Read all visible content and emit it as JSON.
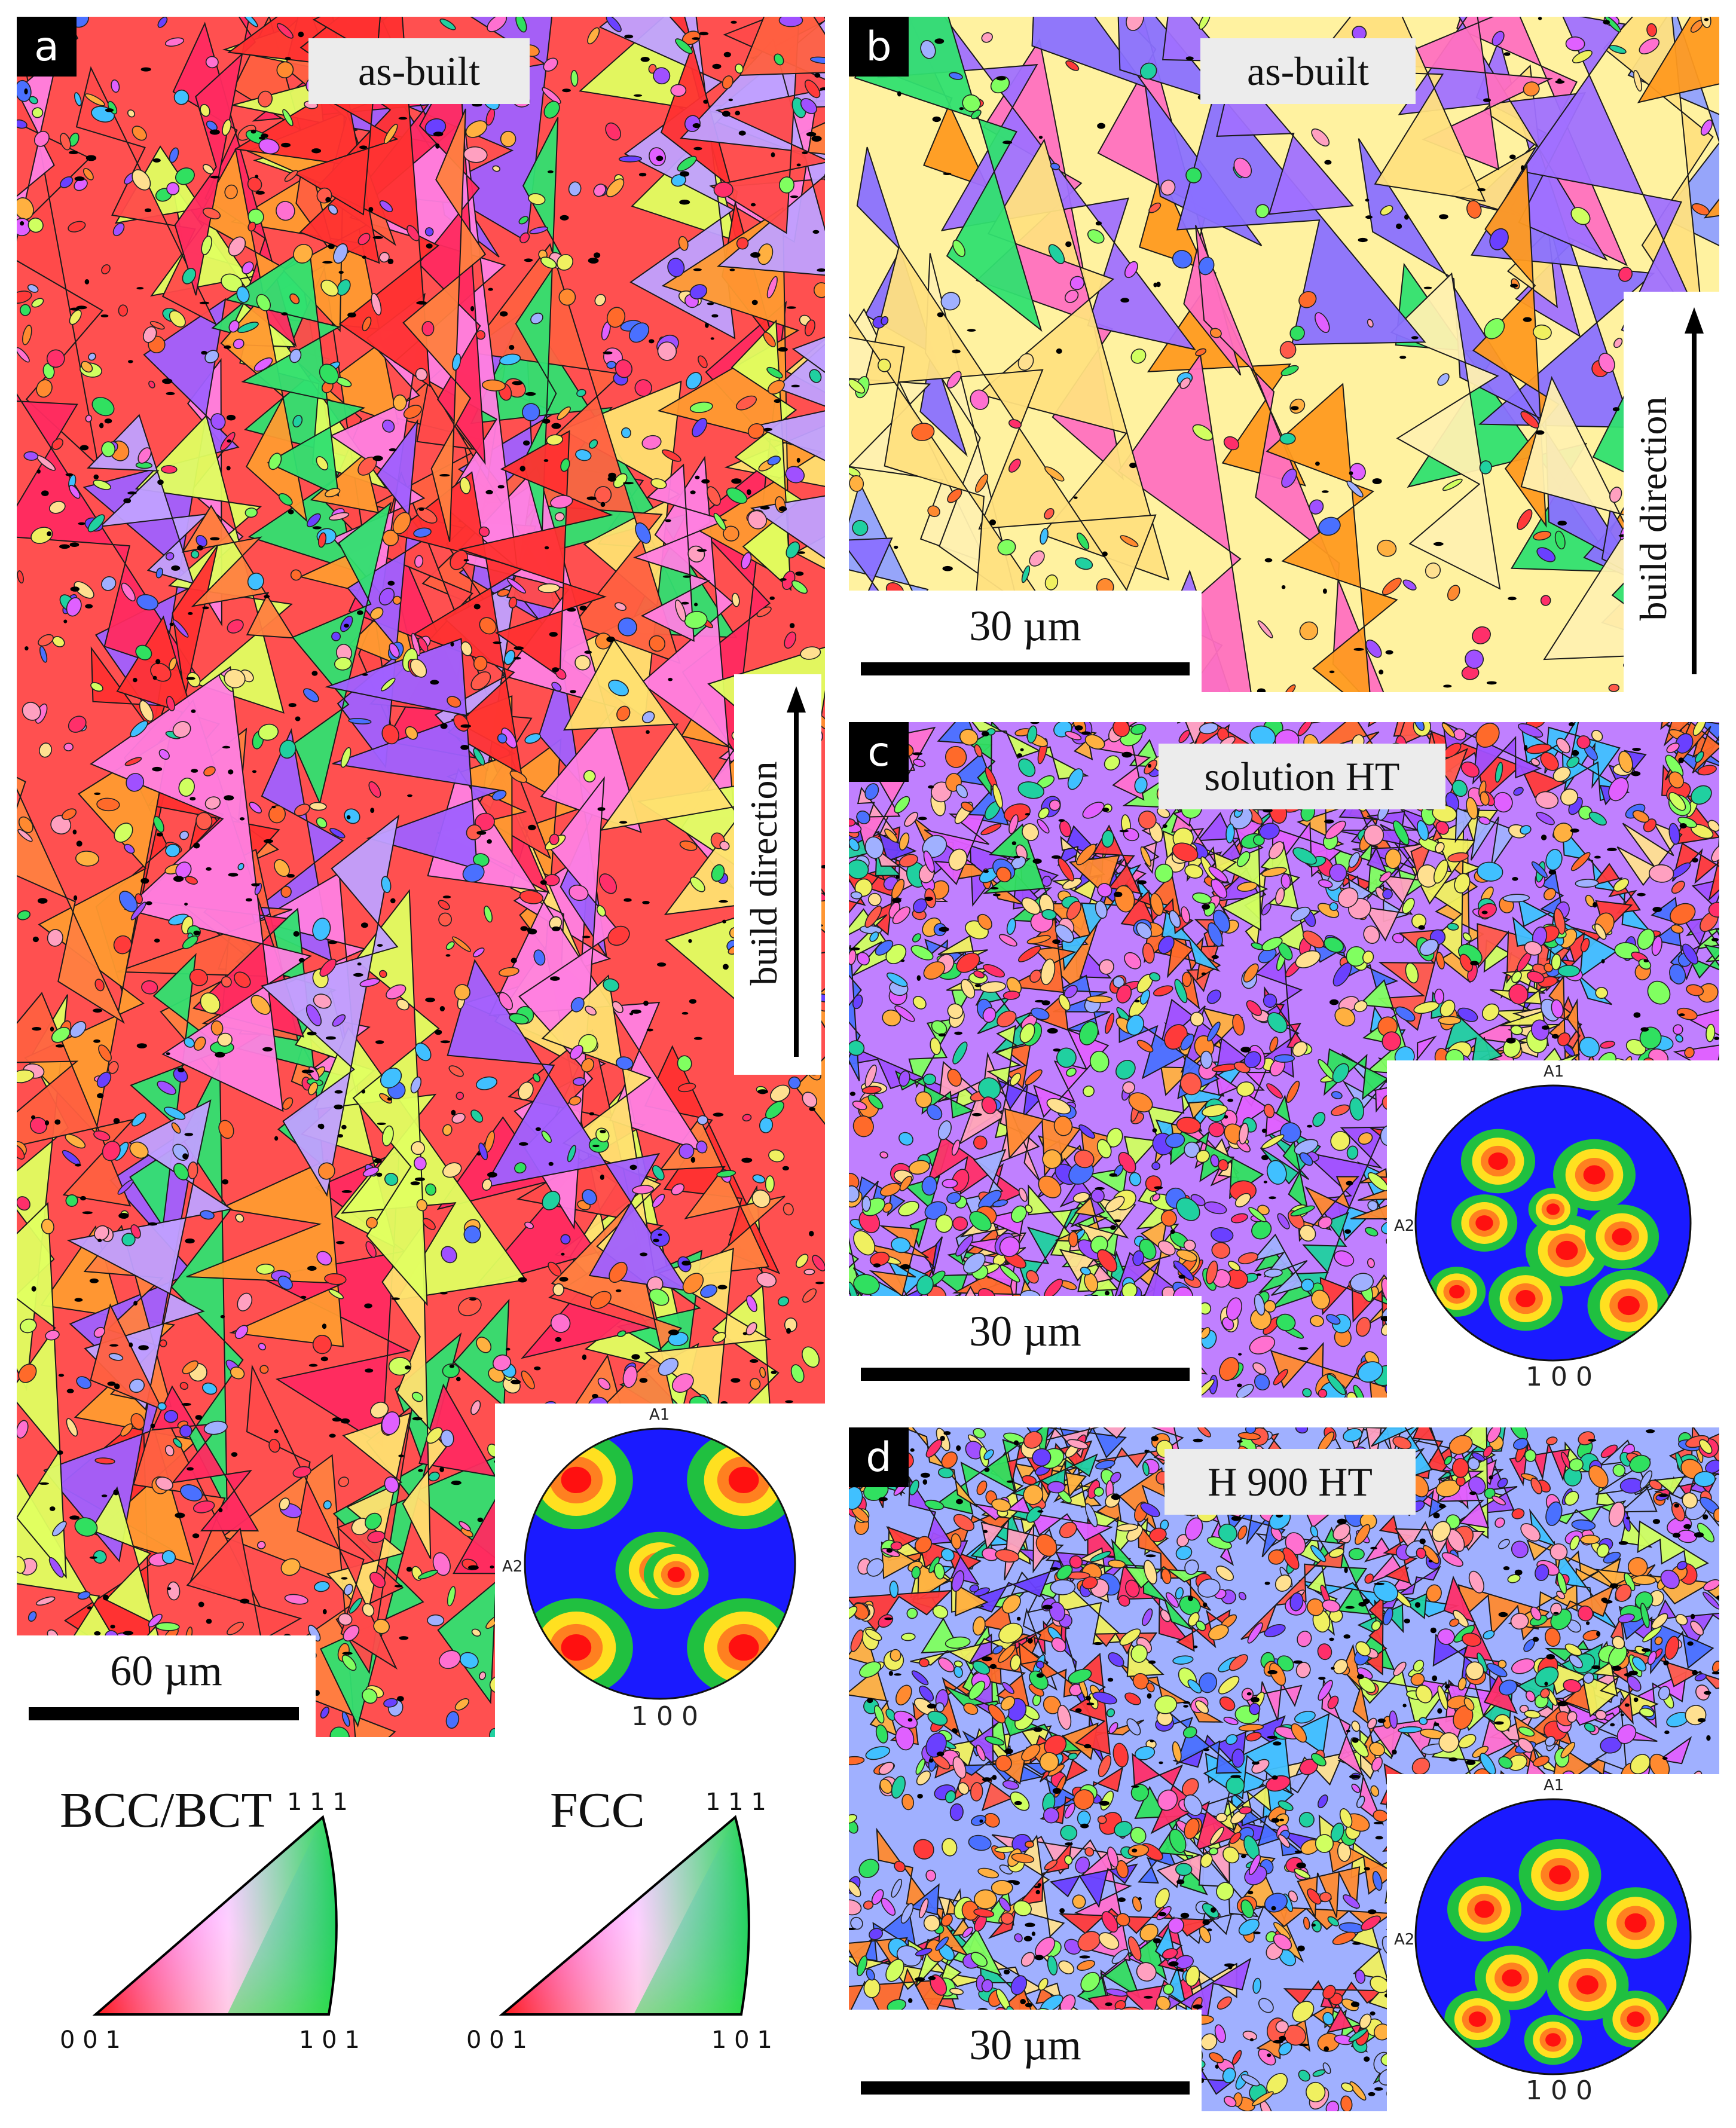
{
  "panels": {
    "a": {
      "letter": "a",
      "condition": "as-built",
      "scale": "60 µm",
      "build_direction": "build direction",
      "pole_figure": {
        "top": "A1",
        "left": "A2",
        "bottom": "1 0 0"
      }
    },
    "b": {
      "letter": "b",
      "condition": "as-built",
      "scale": "30 µm",
      "build_direction": "build direction"
    },
    "c": {
      "letter": "c",
      "condition": "solution HT",
      "scale": "30 µm",
      "pole_figure": {
        "top": "A1",
        "left": "A2",
        "bottom": "1 0 0"
      }
    },
    "d": {
      "letter": "d",
      "condition": "H 900 HT",
      "scale": "30 µm",
      "pole_figure": {
        "top": "A1",
        "left": "A2",
        "bottom": "1 0 0"
      }
    }
  },
  "legends": [
    {
      "title": "BCC/BCT",
      "corner_top": "1 1 1",
      "corner_left": "0 0 1",
      "corner_right": "1 0 1"
    },
    {
      "title": "FCC",
      "corner_top": "1 1 1",
      "corner_left": "0 0 1",
      "corner_right": "1 0 1"
    }
  ],
  "colors": {
    "ipf_red": "#ff2020",
    "ipf_green": "#20e020",
    "ipf_blue": "#2040ff",
    "pf_high": "#ff2020",
    "pf_low": "#1020ff"
  }
}
